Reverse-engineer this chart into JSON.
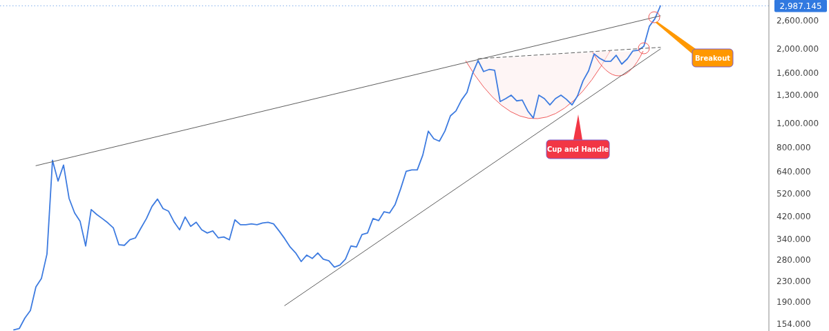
{
  "chart_data": {
    "type": "line",
    "log": "y",
    "tick_labels": "y",
    "categories": [
      null,
      null,
      null,
      null,
      null,
      null,
      null,
      null,
      null,
      null,
      null,
      null,
      null,
      null,
      null,
      null,
      null,
      null,
      null,
      null,
      null,
      null,
      null,
      null,
      null,
      null,
      null,
      null,
      null,
      null,
      null,
      null,
      null,
      null,
      null,
      null,
      null,
      null,
      null,
      null,
      null,
      null,
      null,
      null,
      null,
      null,
      null,
      null,
      null,
      null,
      null,
      null,
      null,
      null,
      null,
      null,
      null,
      null,
      null,
      null,
      null,
      null,
      null,
      null,
      null,
      null,
      null,
      null,
      null,
      null,
      null,
      null,
      null,
      null,
      null,
      null,
      null,
      null,
      null,
      null,
      null,
      null,
      null,
      null,
      null,
      null,
      null,
      null,
      null,
      null,
      null,
      null,
      null,
      null,
      null,
      null,
      null,
      null,
      null,
      null,
      null,
      null,
      null,
      null,
      null,
      null,
      null,
      null,
      null,
      null,
      null,
      null,
      null,
      null,
      null,
      null,
      null,
      null
    ],
    "ylim": [
      144.5,
      3155
    ],
    "yticks": [
      {
        "value": 154,
        "label": "154.000"
      },
      {
        "value": 190,
        "label": "190.000"
      },
      {
        "value": 230,
        "label": "230.000"
      },
      {
        "value": 280,
        "label": "280.000"
      },
      {
        "value": 340,
        "label": "340.000"
      },
      {
        "value": 420,
        "label": "420.000"
      },
      {
        "value": 520,
        "label": "520.000"
      },
      {
        "value": 640,
        "label": "640.000"
      },
      {
        "value": 800,
        "label": "800.000"
      },
      {
        "value": 1000,
        "label": "1,000.000"
      },
      {
        "value": 1300,
        "label": "1,300.000"
      },
      {
        "value": 1600,
        "label": "1,600.000"
      },
      {
        "value": 2000,
        "label": "2,000.000"
      },
      {
        "value": 2600,
        "label": "2,600.000"
      }
    ],
    "series": [
      {
        "color": "#3d7be0",
        "values": [
          146,
          148,
          163,
          175,
          218,
          236,
          296,
          709,
          584,
          678,
          497,
          434,
          401,
          319,
          448,
          428,
          412,
          396,
          378,
          323,
          321,
          338,
          344,
          377,
          412,
          461,
          494,
          452,
          441,
          399,
          371,
          418,
          383,
          398,
          371,
          360,
          367,
          344,
          347,
          338,
          407,
          389,
          389,
          392,
          389,
          395,
          398,
          392,
          367,
          342,
          316,
          299,
          276,
          293,
          284,
          299,
          282,
          278,
          262,
          267,
          282,
          319,
          316,
          355,
          360,
          412,
          404,
          439,
          434,
          470,
          544,
          640,
          648,
          648,
          744,
          930,
          866,
          847,
          930,
          1072,
          1123,
          1242,
          1334,
          1590,
          1795,
          1620,
          1652,
          1640,
          1225,
          1259,
          1300,
          1233,
          1242,
          1122,
          1051,
          1300,
          1259,
          1187,
          1259,
          1300,
          1250,
          1187,
          1292,
          1487,
          1631,
          1910,
          1834,
          1783,
          1783,
          1885,
          1736,
          1822,
          1962,
          1975,
          2052,
          2470,
          2650,
          2987.145
        ]
      },
      {
        "type": "line",
        "color": "#5d5d5d",
        "values": [
          null,
          null,
          null,
          null,
          674,
          null,
          null,
          null,
          null,
          null,
          null,
          null,
          null,
          null,
          null,
          null,
          null,
          null,
          null,
          null,
          null,
          null,
          null,
          null,
          null,
          null,
          null,
          null,
          null,
          null,
          null,
          null,
          null,
          null,
          null,
          null,
          null,
          null,
          null,
          null,
          null,
          null,
          null,
          null,
          null,
          null,
          null,
          null,
          null,
          null,
          null,
          null,
          null,
          null,
          null,
          null,
          null,
          null,
          null,
          null,
          null,
          null,
          null,
          null,
          null,
          null,
          null,
          null,
          null,
          null,
          null,
          null,
          null,
          null,
          null,
          null,
          null,
          null,
          null,
          null,
          null,
          null,
          null,
          null,
          null,
          null,
          null,
          null,
          null,
          null,
          null,
          null,
          null,
          null,
          null,
          null,
          null,
          null,
          null,
          null,
          null,
          null,
          null,
          null,
          null,
          null,
          null,
          null,
          null,
          null,
          null,
          null,
          null,
          null,
          null,
          null,
          null,
          2723
        ]
      },
      {
        "type": "line",
        "color": "#5d5d5d",
        "values": [
          null,
          null,
          null,
          null,
          null,
          null,
          null,
          null,
          null,
          null,
          null,
          null,
          null,
          null,
          null,
          null,
          null,
          null,
          null,
          null,
          null,
          null,
          null,
          null,
          null,
          null,
          null,
          null,
          null,
          null,
          null,
          null,
          null,
          null,
          null,
          null,
          null,
          null,
          null,
          null,
          null,
          null,
          null,
          null,
          null,
          null,
          null,
          null,
          null,
          183,
          null,
          null,
          null,
          null,
          null,
          null,
          null,
          null,
          null,
          null,
          null,
          null,
          null,
          null,
          null,
          null,
          null,
          null,
          null,
          null,
          null,
          null,
          null,
          null,
          null,
          null,
          null,
          null,
          null,
          null,
          null,
          null,
          null,
          null,
          null,
          null,
          null,
          null,
          null,
          null,
          null,
          null,
          null,
          null,
          null,
          null,
          null,
          null,
          null,
          null,
          null,
          null,
          null,
          null,
          null,
          null,
          null,
          null,
          null,
          null,
          null,
          null,
          null,
          null,
          null,
          null,
          null,
          2000
        ]
      },
      {
        "type": "line",
        "color": "#5d5d5d",
        "line_style": "dashed",
        "values": [
          null,
          null,
          null,
          null,
          null,
          null,
          null,
          null,
          null,
          null,
          null,
          null,
          null,
          null,
          null,
          null,
          null,
          null,
          null,
          null,
          null,
          null,
          null,
          null,
          null,
          null,
          null,
          null,
          null,
          null,
          null,
          null,
          null,
          null,
          null,
          null,
          null,
          null,
          null,
          null,
          null,
          null,
          null,
          null,
          null,
          null,
          null,
          null,
          null,
          null,
          null,
          null,
          null,
          null,
          null,
          null,
          null,
          null,
          null,
          null,
          null,
          null,
          null,
          null,
          null,
          null,
          null,
          null,
          null,
          null,
          null,
          null,
          null,
          null,
          null,
          null,
          null,
          null,
          null,
          null,
          null,
          null,
          null,
          null,
          1826,
          null,
          null,
          null,
          null,
          null,
          null,
          null,
          null,
          null,
          null,
          null,
          null,
          null,
          null,
          null,
          null,
          null,
          null,
          null,
          null,
          null,
          null,
          null,
          null,
          null,
          null,
          null,
          null,
          null,
          null,
          null,
          null,
          2030
        ]
      }
    ],
    "ref_lines": [
      {
        "axis": "y",
        "value": 2987.145,
        "label": "2,987.145",
        "color": "#3179e0",
        "line_style": "dotted"
      }
    ],
    "annotations": [
      "Cup and Handle",
      "Breakout"
    ]
  }
}
